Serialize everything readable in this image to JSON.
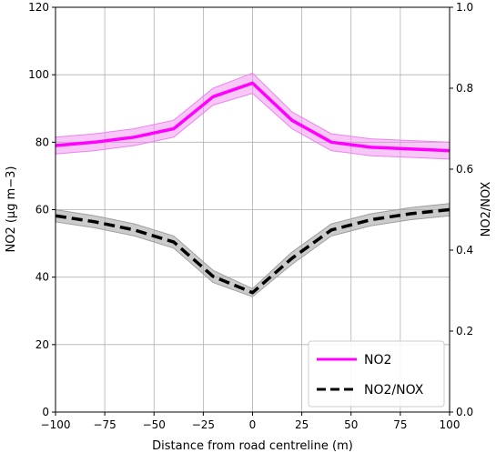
{
  "chart_data": {
    "type": "line",
    "xlabel": "Distance from road centreline (m)",
    "ylabel_left": "NO2 (μg m−3)",
    "ylabel_right": "NO2/NOX",
    "xlim": [
      -100,
      100
    ],
    "ylim_left": [
      0,
      120
    ],
    "ylim_right": [
      0,
      1.0
    ],
    "xticks": [
      -100,
      -75,
      -50,
      -25,
      0,
      25,
      50,
      75,
      100
    ],
    "yticks_left": [
      0,
      20,
      40,
      60,
      80,
      100,
      120
    ],
    "yticks_right": [
      0.0,
      0.2,
      0.4,
      0.6,
      0.8,
      1.0
    ],
    "grid": true,
    "legend_position": "bottom-right",
    "series": [
      {
        "name": "NO2",
        "axis": "left",
        "color": "#ff00ff",
        "band_color": "#ee82ee",
        "line_style": "solid",
        "x": [
          -100,
          -80,
          -60,
          -40,
          -20,
          0,
          20,
          40,
          60,
          80,
          100
        ],
        "y": [
          79,
          80,
          81.5,
          84,
          93.5,
          97.5,
          86.5,
          80,
          78.5,
          78,
          77.5
        ],
        "y_lower": [
          76.5,
          77.5,
          79,
          81.5,
          91,
          94.5,
          84,
          77.5,
          76,
          75.5,
          75
        ],
        "y_upper": [
          81.5,
          82.5,
          84,
          86.5,
          96,
          100.5,
          89,
          82.5,
          81,
          80.5,
          80
        ]
      },
      {
        "name": "NO2/NOX",
        "axis": "right",
        "color": "#000000",
        "band_color": "#a0a0a0",
        "line_style": "dashed",
        "x": [
          -100,
          -80,
          -60,
          -40,
          -20,
          0,
          20,
          40,
          60,
          80,
          100
        ],
        "y": [
          0.485,
          0.47,
          0.45,
          0.42,
          0.335,
          0.295,
          0.38,
          0.45,
          0.475,
          0.49,
          0.5
        ],
        "y_lower": [
          0.47,
          0.455,
          0.435,
          0.405,
          0.32,
          0.285,
          0.365,
          0.435,
          0.46,
          0.475,
          0.485
        ],
        "y_upper": [
          0.5,
          0.485,
          0.465,
          0.435,
          0.35,
          0.305,
          0.395,
          0.465,
          0.49,
          0.505,
          0.515
        ]
      }
    ]
  }
}
